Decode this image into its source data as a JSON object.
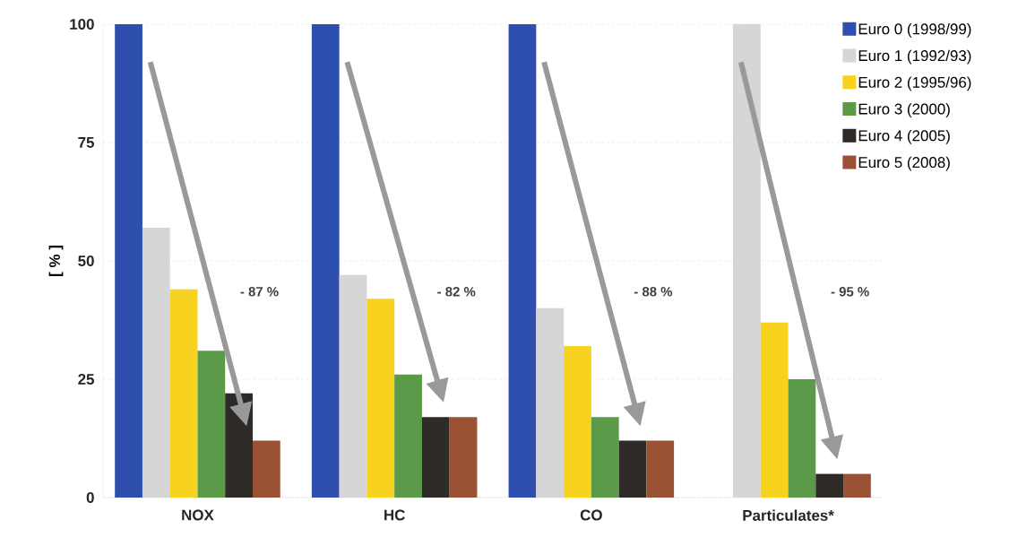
{
  "chart_data": {
    "type": "bar",
    "ylabel": "[ % ]",
    "categories": [
      "NOX",
      "HC",
      "CO",
      "Particulates*"
    ],
    "series": [
      {
        "name": "Euro 0 (1998/99)",
        "color": "#2f4fae",
        "values": [
          100,
          100,
          100,
          null
        ]
      },
      {
        "name": "Euro 1 (1992/93)",
        "color": "#d6d6d6",
        "values": [
          57,
          47,
          40,
          100
        ]
      },
      {
        "name": "Euro 2 (1995/96)",
        "color": "#f7d21e",
        "values": [
          44,
          42,
          32,
          37
        ]
      },
      {
        "name": "Euro 3 (2000)",
        "color": "#5a9a48",
        "values": [
          31,
          26,
          17,
          25
        ]
      },
      {
        "name": "Euro 4 (2005)",
        "color": "#2e2a28",
        "values": [
          22,
          17,
          12,
          5
        ]
      },
      {
        "name": "Euro 5 (2008)",
        "color": "#9b5234",
        "values": [
          12,
          17,
          12,
          5
        ]
      }
    ],
    "ylim": [
      0,
      100
    ],
    "yticks": [
      0,
      25,
      50,
      75,
      100
    ],
    "grid": "y",
    "legend": "top right",
    "annotations": [
      "- 87 %",
      "- 82 %",
      "- 88 %",
      "- 95 %"
    ]
  }
}
